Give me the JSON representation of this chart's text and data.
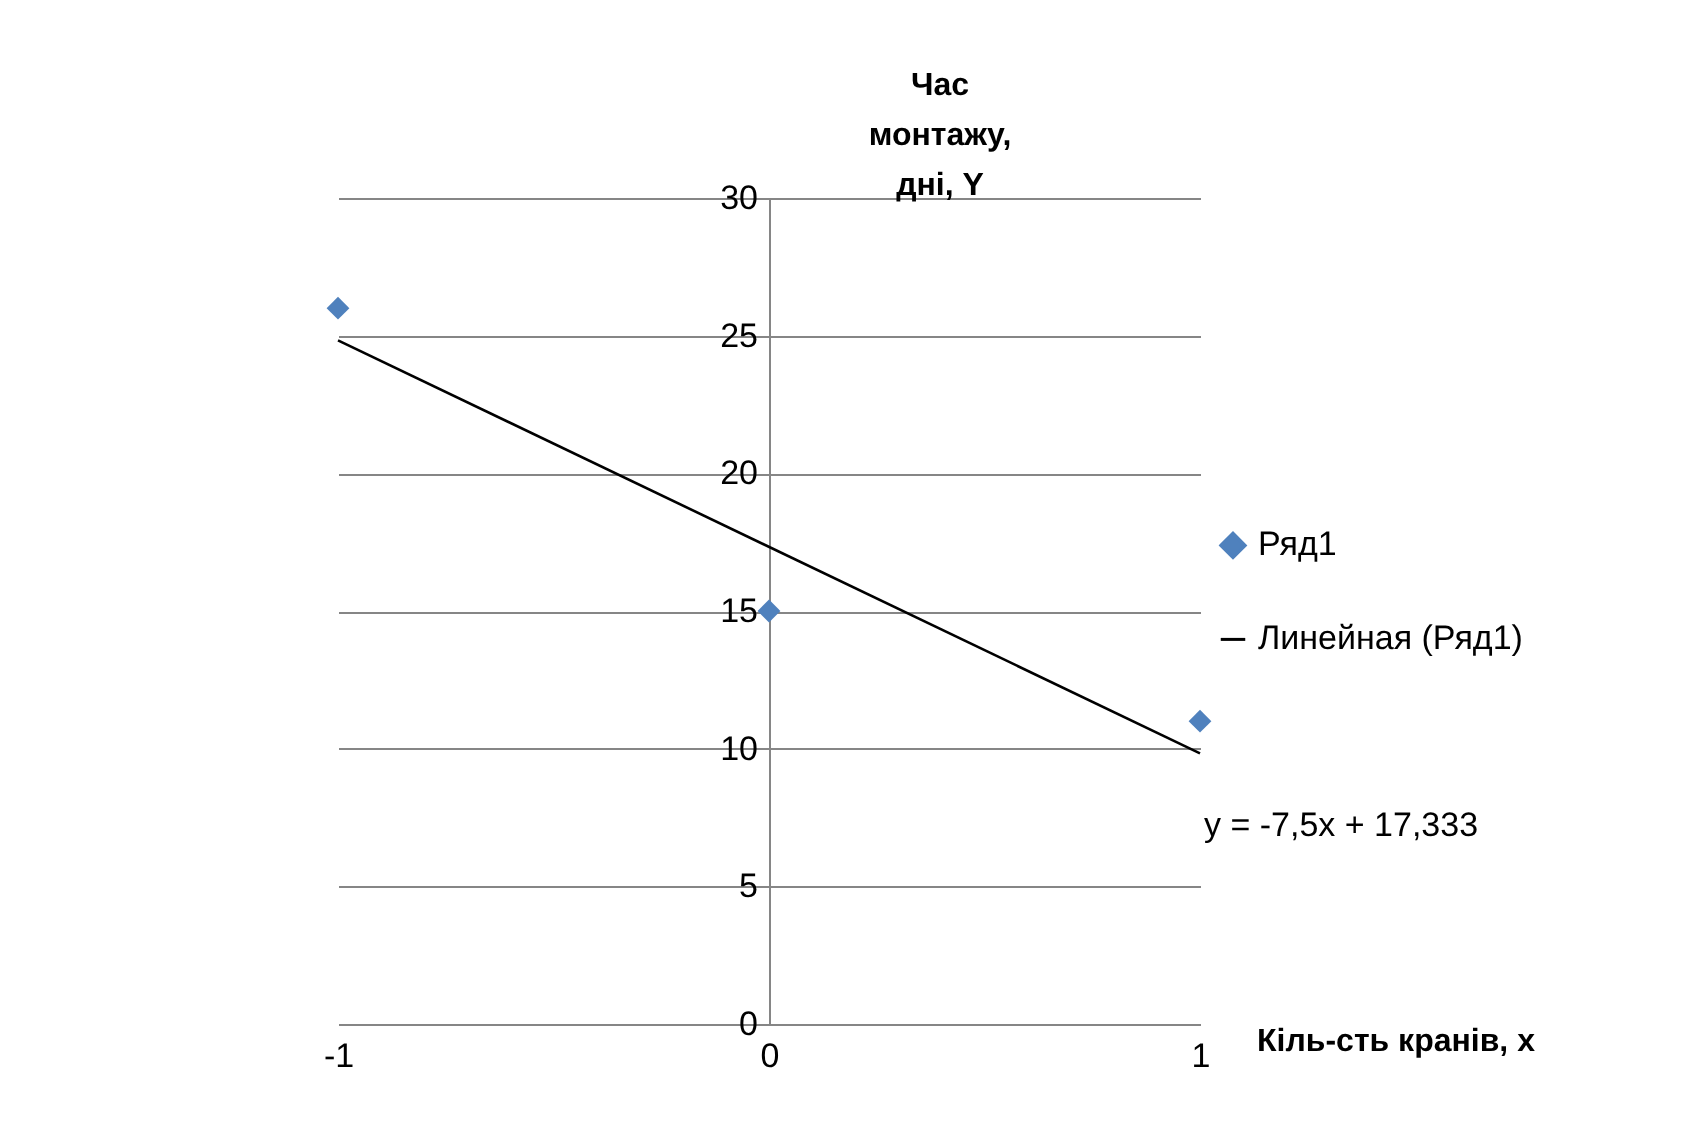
{
  "chart_data": {
    "type": "scatter",
    "xlabel": "Кіль-сть кранів, x",
    "ylabel": "Час монтажу, дні, Y",
    "x": [
      -1,
      0,
      1
    ],
    "series": [
      {
        "name": "Ряд1",
        "color": "#4f81bd",
        "values": [
          26,
          15,
          11
        ]
      },
      {
        "name": "Линейная (Ряд1)",
        "type": "line",
        "marker": "none",
        "color": "#000000",
        "x": [
          -1,
          1
        ],
        "values": [
          24.83,
          9.83
        ]
      }
    ],
    "xlim": [
      -1,
      1
    ],
    "xticks": [
      -1,
      0,
      1
    ],
    "ylim": [
      0,
      30
    ],
    "yticks": [
      0,
      5,
      10,
      15,
      20,
      25,
      30
    ],
    "grid": "y",
    "legend": "right",
    "marker": "diamond",
    "annotations": [
      "y = -7,5x + 17,333"
    ]
  }
}
